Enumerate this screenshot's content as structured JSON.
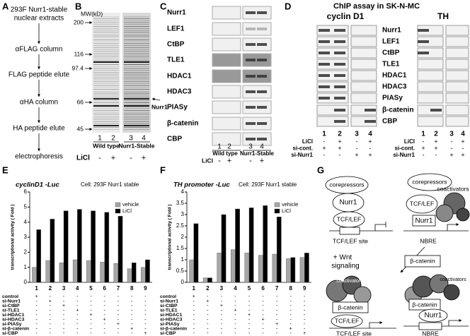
{
  "panel_labels": [
    "A",
    "B",
    "C",
    "D",
    "E",
    "F",
    "G"
  ],
  "A": {
    "source": [
      "293F Nurr1-stable",
      "nuclear extracts"
    ],
    "steps": [
      "αFLAG column",
      "FLAG peptide elute",
      "αHA column",
      "HA peptide elute",
      "electrophoresis"
    ]
  },
  "B": {
    "mw_label": "MW(kD)",
    "markers": [
      "200",
      "116",
      "97.4",
      "66",
      "45"
    ],
    "lanes": [
      "1",
      "2",
      "3",
      "4"
    ],
    "groups": [
      "Wild type",
      "Nurr1-Stable"
    ],
    "licl_label": "LiCl",
    "licl": [
      "-",
      "+",
      "-",
      "+"
    ],
    "arrow_label": "Nurr1"
  },
  "C": {
    "rows": [
      "Nurr1",
      "LEF1",
      "CtBP",
      "TLE1",
      "HDAC1",
      "HDAC3",
      "PIASy",
      "β-catenin",
      "CBP"
    ],
    "lanes": [
      "1",
      "2",
      "3",
      "4"
    ],
    "groups": [
      "Wild type",
      "Nurr1-Stable"
    ],
    "licl_label": "LiCl",
    "licl": [
      "-",
      "+",
      "-",
      "+"
    ]
  },
  "D": {
    "title": "ChIP assay in SK-N-MC",
    "blocks": [
      "cyclin D1",
      "TH"
    ],
    "rows": [
      "Nurr1",
      "LEF1",
      "CtBP",
      "TLE1",
      "HDAC1",
      "HDAC3",
      "PIASy",
      "β-catenin",
      "CBP"
    ],
    "lanes": [
      "1",
      "2",
      "3",
      "4"
    ],
    "conditions": [
      {
        "label": "LiCl",
        "signs": [
          "-",
          "+",
          "-",
          "+"
        ]
      },
      {
        "label": "si-cont.",
        "signs": [
          "+",
          "+",
          "-",
          "-"
        ]
      },
      {
        "label": "si-Nurr1",
        "signs": [
          "-",
          "-",
          "+",
          "+"
        ]
      }
    ]
  },
  "chart_data": [
    {
      "type": "bar",
      "title": "cyclinD1 -Luc",
      "subtitle": "Cell: 293F Nurr1 stable",
      "y_label": "transcriptional activity ( Fold )",
      "categories": [
        "1",
        "2",
        "3",
        "4",
        "5",
        "6",
        "7",
        "8",
        "9"
      ],
      "series": [
        {
          "name": "vehicle",
          "color": "#a6a6a6",
          "values": [
            1.0,
            1.45,
            1.3,
            1.5,
            1.45,
            1.35,
            1.25,
            0.9,
            1.0
          ]
        },
        {
          "name": "LiCl",
          "color": "#000000",
          "values": [
            3.5,
            4.2,
            4.75,
            4.85,
            4.75,
            4.65,
            4.4,
            1.3,
            1.5
          ]
        }
      ],
      "ylim": [
        0,
        6
      ],
      "yticks": [
        0,
        1,
        2,
        3,
        4,
        5,
        6
      ],
      "legend": "upper right",
      "table": {
        "rows": [
          "control",
          "si-Nurr1",
          "si-CtBP",
          "si-TLE1",
          "si-HDAC1",
          "si-HDAC3",
          "si-PIASy",
          "si-β-catenin",
          "si-CBP"
        ],
        "signs": [
          [
            "+",
            "-",
            "-",
            "-",
            "-",
            "-",
            "-",
            "-",
            "-"
          ],
          [
            "-",
            "+",
            "-",
            "-",
            "-",
            "-",
            "-",
            "-",
            "-"
          ],
          [
            "-",
            "-",
            "+",
            "-",
            "-",
            "-",
            "-",
            "-",
            "-"
          ],
          [
            "-",
            "-",
            "-",
            "+",
            "-",
            "-",
            "-",
            "-",
            "-"
          ],
          [
            "-",
            "-",
            "-",
            "-",
            "+",
            "-",
            "-",
            "-",
            "-"
          ],
          [
            "-",
            "-",
            "-",
            "-",
            "-",
            "+",
            "-",
            "-",
            "-"
          ],
          [
            "-",
            "-",
            "-",
            "-",
            "-",
            "-",
            "+",
            "-",
            "-"
          ],
          [
            "-",
            "-",
            "-",
            "-",
            "-",
            "-",
            "-",
            "+",
            "-"
          ],
          [
            "-",
            "-",
            "-",
            "-",
            "-",
            "-",
            "-",
            "-",
            "+"
          ]
        ]
      }
    },
    {
      "type": "bar",
      "title": "TH promoter -Luc",
      "subtitle": "Cell: 293F Nurr1 stable",
      "y_label": "transcriptional activity ( Fold )",
      "categories": [
        "1",
        "2",
        "3",
        "4",
        "5",
        "6",
        "7",
        "8",
        "9"
      ],
      "series": [
        {
          "name": "vehicle",
          "color": "#a6a6a6",
          "values": [
            1.0,
            0.2,
            1.3,
            1.45,
            1.3,
            1.2,
            1.25,
            1.05,
            1.1
          ]
        },
        {
          "name": "LiCl",
          "color": "#000000",
          "values": [
            2.6,
            0.2,
            3.0,
            3.25,
            3.3,
            3.4,
            2.9,
            1.1,
            1.3
          ]
        }
      ],
      "ylim": [
        0,
        4
      ],
      "yticks": [
        0,
        0.5,
        1,
        1.5,
        2,
        2.5,
        3,
        3.5,
        4
      ],
      "legend": "upper right",
      "table": {
        "rows": [
          "control",
          "si-Nurr1",
          "si-CtBP",
          "si-TLE1",
          "si-HDAC1",
          "si-HDAC3",
          "si-PIASy",
          "si-β-catenin",
          "si-CBP"
        ],
        "signs": [
          [
            "+",
            "-",
            "-",
            "-",
            "-",
            "-",
            "-",
            "-",
            "-"
          ],
          [
            "-",
            "+",
            "-",
            "-",
            "-",
            "-",
            "-",
            "-",
            "-"
          ],
          [
            "-",
            "-",
            "+",
            "-",
            "-",
            "-",
            "-",
            "-",
            "-"
          ],
          [
            "-",
            "-",
            "-",
            "+",
            "-",
            "-",
            "-",
            "-",
            "-"
          ],
          [
            "-",
            "-",
            "-",
            "-",
            "+",
            "-",
            "-",
            "-",
            "-"
          ],
          [
            "-",
            "-",
            "-",
            "-",
            "-",
            "+",
            "-",
            "-",
            "-"
          ],
          [
            "-",
            "-",
            "-",
            "-",
            "-",
            "-",
            "+",
            "-",
            "-"
          ],
          [
            "-",
            "-",
            "-",
            "-",
            "-",
            "-",
            "-",
            "+",
            "-"
          ],
          [
            "-",
            "-",
            "-",
            "-",
            "-",
            "-",
            "-",
            "-",
            "+"
          ]
        ]
      }
    }
  ],
  "G": {
    "top_left": [
      "corepressors",
      "Nurr1",
      "TCF/LEF",
      "TCF/LEF site"
    ],
    "top_right": [
      "corepressors",
      "coactivators",
      "TCF/LEF",
      "Nurr1",
      "NBRE"
    ],
    "signal": [
      "+ Wnt",
      "signaling"
    ],
    "free": "β-catenin",
    "bottom_left": [
      "coactivators",
      "β-catenin",
      "TCF/LEF",
      "TCF/LEF site"
    ],
    "bottom_right": [
      "coactivators",
      "β-catenin",
      "Nurr1",
      "NBRE"
    ]
  }
}
